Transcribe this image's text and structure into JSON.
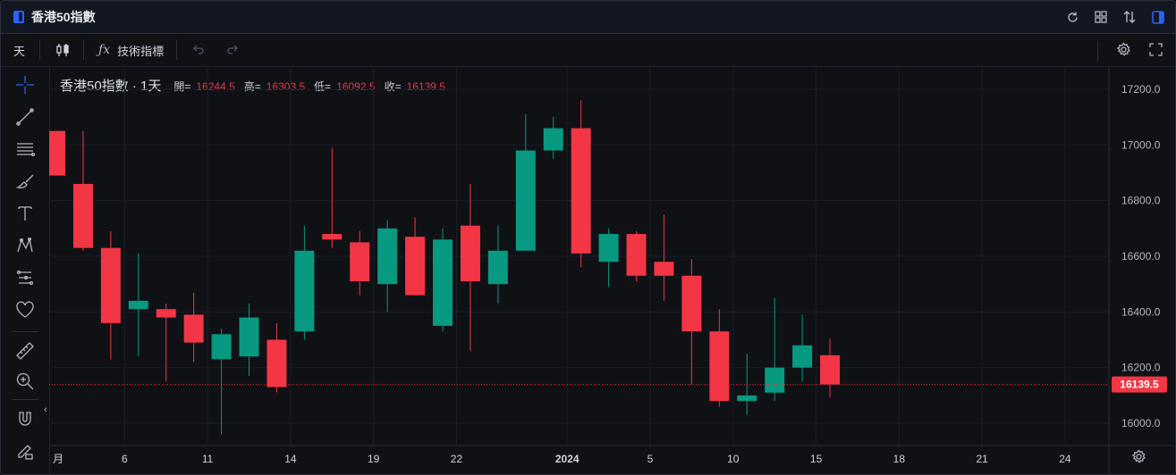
{
  "window": {
    "title": "香港50指數"
  },
  "toolbar": {
    "interval": "天",
    "indicators_label": "技術指標"
  },
  "legend": {
    "symbol": "香港50指數 · 1天",
    "open_label": "開=",
    "open": "16244.5",
    "high_label": "高=",
    "high": "16303.5",
    "low_label": "低=",
    "low": "16092.5",
    "close_label": "收=",
    "close": "16139.5"
  },
  "price_label": "16139.5",
  "colors": {
    "up": "#089981",
    "down": "#f23645",
    "accent": "#2962ff",
    "background": "#0f1115"
  },
  "icons": {
    "title_bar": [
      "layout-icon",
      "refresh-icon",
      "grid-icon",
      "compare-icon",
      "panel-icon"
    ],
    "toolbar": [
      "candles-icon",
      "fx-icon",
      "undo-icon",
      "redo-icon",
      "settings-icon",
      "fullscreen-icon"
    ],
    "left": [
      "crosshair-icon",
      "trendline-icon",
      "fib-icon",
      "brush-icon",
      "text-icon",
      "pattern-icon",
      "forecast-icon",
      "heart-icon",
      "ruler-icon",
      "zoom-icon",
      "magnet-icon",
      "lock-pencil-icon"
    ]
  },
  "chart_data": {
    "type": "candlestick",
    "y_axis": {
      "ticks": [
        "16000.0",
        "16200.0",
        "16400.0",
        "16600.0",
        "16800.0",
        "17000.0",
        "17200.0"
      ],
      "range": [
        15920,
        17280
      ]
    },
    "x_axis": {
      "ticks": [
        {
          "label": "月",
          "at": -0.5
        },
        {
          "label": "6",
          "at": 2.5
        },
        {
          "label": "11",
          "at": 5.5
        },
        {
          "label": "14",
          "at": 8.5
        },
        {
          "label": "19",
          "at": 11.5
        },
        {
          "label": "22",
          "at": 14.5
        },
        {
          "label": "2024",
          "at": 18.5
        },
        {
          "label": "5",
          "at": 21.5
        },
        {
          "label": "10",
          "at": 24.5
        },
        {
          "label": "15",
          "at": 27.5
        },
        {
          "label": "18",
          "at": 30.5
        },
        {
          "label": "21",
          "at": 33.5
        },
        {
          "label": "24",
          "at": 36.5
        }
      ]
    },
    "candles": [
      {
        "o": 17050,
        "h": 17050,
        "l": 16890,
        "c": 16890
      },
      {
        "o": 16860,
        "h": 17050,
        "l": 16620,
        "c": 16630
      },
      {
        "o": 16630,
        "h": 16690,
        "l": 16230,
        "c": 16360
      },
      {
        "o": 16410,
        "h": 16610,
        "l": 16240,
        "c": 16440
      },
      {
        "o": 16410,
        "h": 16430,
        "l": 16150,
        "c": 16380
      },
      {
        "o": 16390,
        "h": 16470,
        "l": 16220,
        "c": 16290
      },
      {
        "o": 16230,
        "h": 16340,
        "l": 15960,
        "c": 16320
      },
      {
        "o": 16240,
        "h": 16430,
        "l": 16170,
        "c": 16380
      },
      {
        "o": 16300,
        "h": 16360,
        "l": 16110,
        "c": 16130
      },
      {
        "o": 16330,
        "h": 16710,
        "l": 16300,
        "c": 16620
      },
      {
        "o": 16680,
        "h": 16990,
        "l": 16630,
        "c": 16660
      },
      {
        "o": 16650,
        "h": 16690,
        "l": 16460,
        "c": 16510
      },
      {
        "o": 16500,
        "h": 16730,
        "l": 16400,
        "c": 16700
      },
      {
        "o": 16670,
        "h": 16740,
        "l": 16460,
        "c": 16460
      },
      {
        "o": 16350,
        "h": 16700,
        "l": 16330,
        "c": 16660
      },
      {
        "o": 16710,
        "h": 16860,
        "l": 16260,
        "c": 16510
      },
      {
        "o": 16500,
        "h": 16710,
        "l": 16430,
        "c": 16620
      },
      {
        "o": 16620,
        "h": 17110,
        "l": 16620,
        "c": 16980
      },
      {
        "o": 16980,
        "h": 17100,
        "l": 16950,
        "c": 17060
      },
      {
        "o": 17060,
        "h": 17160,
        "l": 16560,
        "c": 16610
      },
      {
        "o": 16580,
        "h": 16700,
        "l": 16490,
        "c": 16680
      },
      {
        "o": 16680,
        "h": 16690,
        "l": 16510,
        "c": 16530
      },
      {
        "o": 16580,
        "h": 16750,
        "l": 16440,
        "c": 16530
      },
      {
        "o": 16530,
        "h": 16590,
        "l": 16140,
        "c": 16330
      },
      {
        "o": 16330,
        "h": 16410,
        "l": 16060,
        "c": 16080
      },
      {
        "o": 16080,
        "h": 16250,
        "l": 16030,
        "c": 16100
      },
      {
        "o": 16110,
        "h": 16450,
        "l": 16080,
        "c": 16200
      },
      {
        "o": 16200,
        "h": 16390,
        "l": 16150,
        "c": 16280
      },
      {
        "o": 16244.5,
        "h": 16303.5,
        "l": 16092.5,
        "c": 16139.5
      }
    ]
  }
}
